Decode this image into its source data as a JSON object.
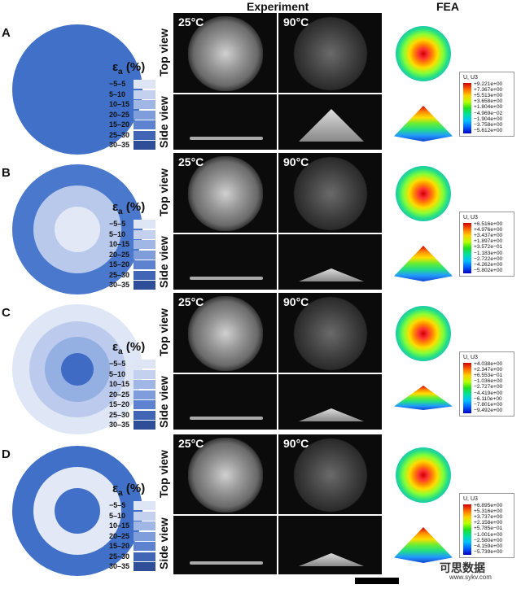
{
  "headers": {
    "experiment": "Experiment",
    "fea": "FEA"
  },
  "legend": {
    "title": "ε",
    "subscript": "a",
    "unit": "(%)",
    "labels": [
      "−5–5",
      "5–10",
      "10–15",
      "20–25",
      "15–20",
      "25–30",
      "30–35"
    ],
    "colors": [
      "#dee5f4",
      "#c3d1ef",
      "#a0b7e6",
      "#7f9ddb",
      "#5d82cf",
      "#4266b6",
      "#2e4f98"
    ]
  },
  "view_labels": {
    "top": "Top view",
    "side": "Side view"
  },
  "temps": [
    "25°C",
    "90°C"
  ],
  "panels": [
    {
      "label": "A",
      "rings": [
        "#4170c8"
      ],
      "fea": {
        "title": "U, U3",
        "values": [
          "+9.221e+00",
          "+7.367e+00",
          "+5.513e+00",
          "+3.658e+00",
          "+1.804e+00",
          "−4.969e−02",
          "−1.904e+00",
          "−3.758e+00",
          "−5.612e+00"
        ]
      }
    },
    {
      "label": "B",
      "rings": [
        "#4a78cc",
        "#b8c9ec",
        "#e2e8f6"
      ],
      "fea": {
        "title": "U, U3",
        "values": [
          "+6.516e+00",
          "+4.976e+00",
          "+3.437e+00",
          "+1.897e+00",
          "+3.572e−01",
          "−1.183e+00",
          "−2.722e+00",
          "−4.262e+00",
          "−5.802e+00"
        ]
      }
    },
    {
      "label": "C",
      "rings": [
        "#dfe6f5",
        "#bccbed",
        "#94afe2",
        "#3f6bc4"
      ],
      "fea": {
        "title": "U, U3",
        "values": [
          "+4.038e+00",
          "+2.347e+00",
          "+6.553e−01",
          "−1.036e+00",
          "−2.727e+00",
          "−4.419e+00",
          "−6.110e+00",
          "−7.801e+00",
          "−9.492e+00"
        ]
      }
    },
    {
      "label": "D",
      "rings": [
        "#4170c8",
        "#e2e8f6",
        "#4170c8"
      ],
      "fea": {
        "title": "U, U3",
        "values": [
          "+6.895e+00",
          "+5.316e+00",
          "+3.737e+00",
          "+2.158e+00",
          "+5.785e−01",
          "−1.001e+00",
          "−2.580e+00",
          "−4.159e+00",
          "−5.739e+00"
        ]
      }
    }
  ],
  "watermark": {
    "text": "可思数据",
    "url": "www.sykv.com"
  }
}
